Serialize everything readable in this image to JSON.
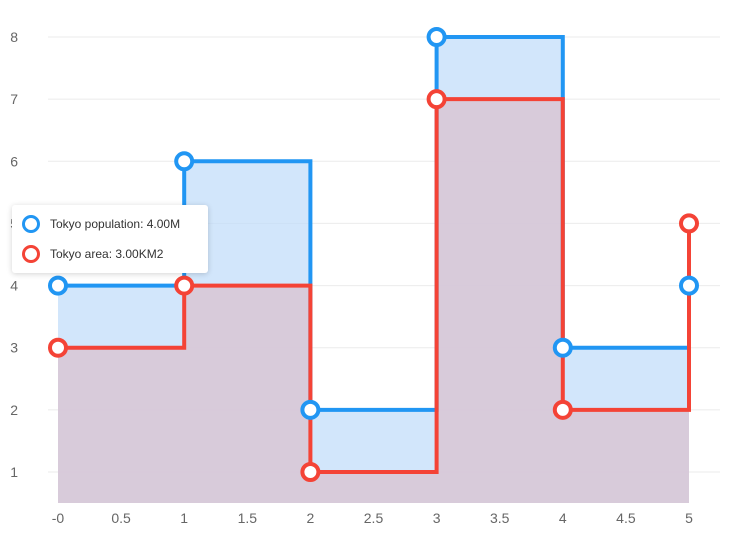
{
  "chart_data": {
    "type": "line",
    "step": "after",
    "stacked": false,
    "x": [
      0,
      1,
      2,
      3,
      4,
      5
    ],
    "x_tick_labels": [
      "-0",
      "0.5",
      "1",
      "1.5",
      "2",
      "2.5",
      "3",
      "3.5",
      "4",
      "4.5",
      "5"
    ],
    "x_ticks": [
      0,
      0.5,
      1,
      1.5,
      2,
      2.5,
      3,
      3.5,
      4,
      4.5,
      5
    ],
    "xlim": [
      -0.1,
      5.25
    ],
    "y_ticks": [
      1,
      2,
      3,
      4,
      5,
      6,
      7,
      8
    ],
    "y_tick_labels": [
      "1",
      "2",
      "3",
      "4",
      "5",
      "6",
      "7",
      "8"
    ],
    "ylim": [
      0.5,
      8.5
    ],
    "grid": true,
    "series": [
      {
        "name": "Tokyo population",
        "values": [
          4,
          6,
          2,
          8,
          3,
          4
        ],
        "color": "#2196f3",
        "fill": "#bfdcfa",
        "fill_opacity": 0.7
      },
      {
        "name": "Tokyo area",
        "values": [
          3,
          4,
          1,
          7,
          2,
          5
        ],
        "color": "#f44336",
        "fill": "#d8c8d6",
        "fill_opacity": 0.9
      }
    ],
    "tooltip": {
      "rows": [
        {
          "label": "Tokyo population: 4.00M",
          "color": "#2196f3"
        },
        {
          "label": "Tokyo area: 3.00KM2",
          "color": "#f44336"
        }
      ]
    }
  }
}
